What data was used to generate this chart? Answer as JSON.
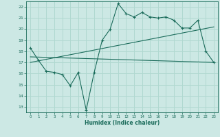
{
  "xlabel": "Humidex (Indice chaleur)",
  "bg_color": "#cce8e4",
  "grid_color": "#b0d8d0",
  "line_color": "#1a6b5a",
  "xlim": [
    -0.5,
    23.5
  ],
  "ylim": [
    12.5,
    22.5
  ],
  "xticks": [
    0,
    1,
    2,
    3,
    4,
    5,
    6,
    7,
    8,
    9,
    10,
    11,
    12,
    13,
    14,
    15,
    16,
    17,
    18,
    19,
    20,
    21,
    22,
    23
  ],
  "yticks": [
    13,
    14,
    15,
    16,
    17,
    18,
    19,
    20,
    21,
    22
  ],
  "line1_x": [
    0,
    1,
    2,
    3,
    4,
    5,
    6,
    7,
    8,
    9,
    10,
    11,
    12,
    13,
    14,
    15,
    16,
    17,
    18,
    19,
    20,
    21,
    22,
    23
  ],
  "line1_y": [
    18.3,
    17.2,
    16.2,
    16.1,
    15.9,
    14.9,
    16.1,
    12.7,
    16.1,
    19.0,
    20.0,
    22.3,
    21.4,
    21.1,
    21.5,
    21.1,
    21.0,
    21.1,
    20.8,
    20.1,
    20.1,
    20.8,
    18.0,
    17.0
  ],
  "line2_x": [
    0,
    23
  ],
  "line2_y": [
    17.5,
    17.0
  ],
  "line3_x": [
    0,
    23
  ],
  "line3_y": [
    17.0,
    20.2
  ],
  "marker_size": 2.5
}
